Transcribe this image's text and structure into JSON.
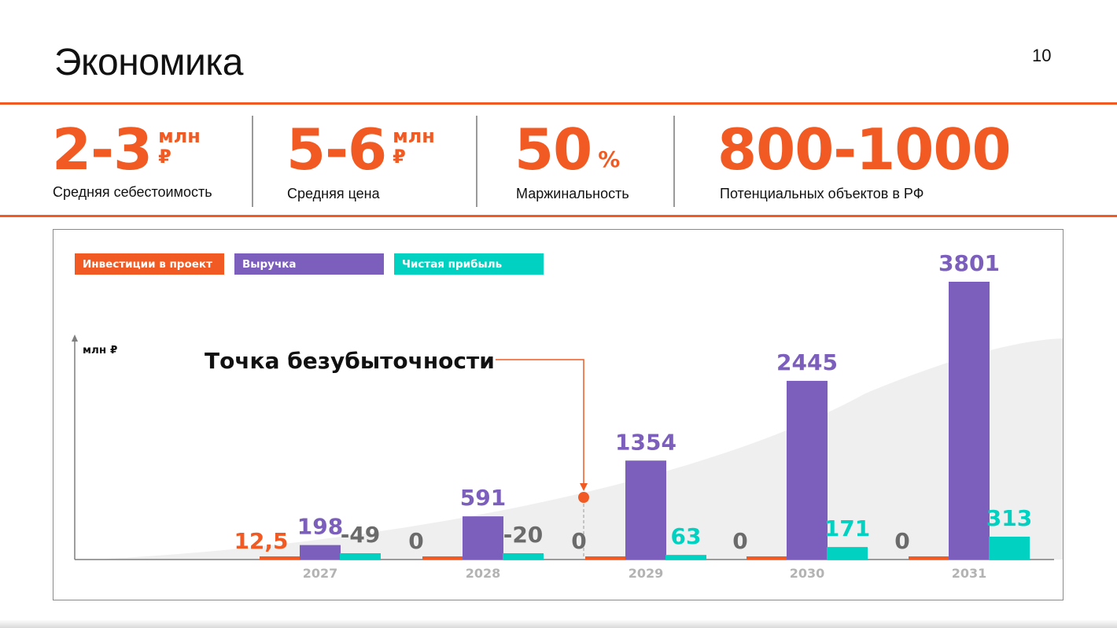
{
  "slide": {
    "title": "Экономика",
    "page_number": "10"
  },
  "stats": [
    {
      "value": "2-3",
      "unit_line1": "млн",
      "unit_line2": "₽",
      "caption": "Средняя себестоимость"
    },
    {
      "value": "5-6",
      "unit_line1": "млн",
      "unit_line2": "₽",
      "caption": "Средняя цена"
    },
    {
      "value": "50",
      "unit_line1": "%",
      "caption": "Маржинальность"
    },
    {
      "value": "800-1000",
      "caption": "Потенциальных объектов в РФ"
    }
  ],
  "colors": {
    "accent": "#f15a22",
    "revenue": "#7c5fbd",
    "profit": "#00d1c1",
    "negative_label": "#6b6b6b",
    "axis_label": "#b3b3b3",
    "background_area": "#efefef"
  },
  "chart_data": {
    "type": "bar",
    "ylabel": "млн ₽",
    "categories": [
      "2027",
      "2028",
      "2029",
      "2030",
      "2031"
    ],
    "series": [
      {
        "name": "Инвестиции в проект",
        "color": "#f15a22",
        "values": [
          12.5,
          0,
          0,
          0,
          0
        ],
        "labels": [
          "12,5",
          "0",
          "0",
          "0",
          "0"
        ]
      },
      {
        "name": "Выручка",
        "color": "#7c5fbd",
        "values": [
          198,
          591,
          1354,
          2445,
          3801
        ],
        "labels": [
          "198",
          "591",
          "1354",
          "2445",
          "3801"
        ]
      },
      {
        "name": "Чистая прибыль",
        "color": "#00d1c1",
        "values": [
          -49,
          -20,
          63,
          171,
          313
        ],
        "labels": [
          "-49",
          "-20",
          "63",
          "171",
          "313"
        ]
      }
    ],
    "annotation": {
      "text": "Точка безубыточности",
      "between": [
        "2028",
        "2029"
      ]
    },
    "grid": false,
    "legend_position": "top-left"
  }
}
